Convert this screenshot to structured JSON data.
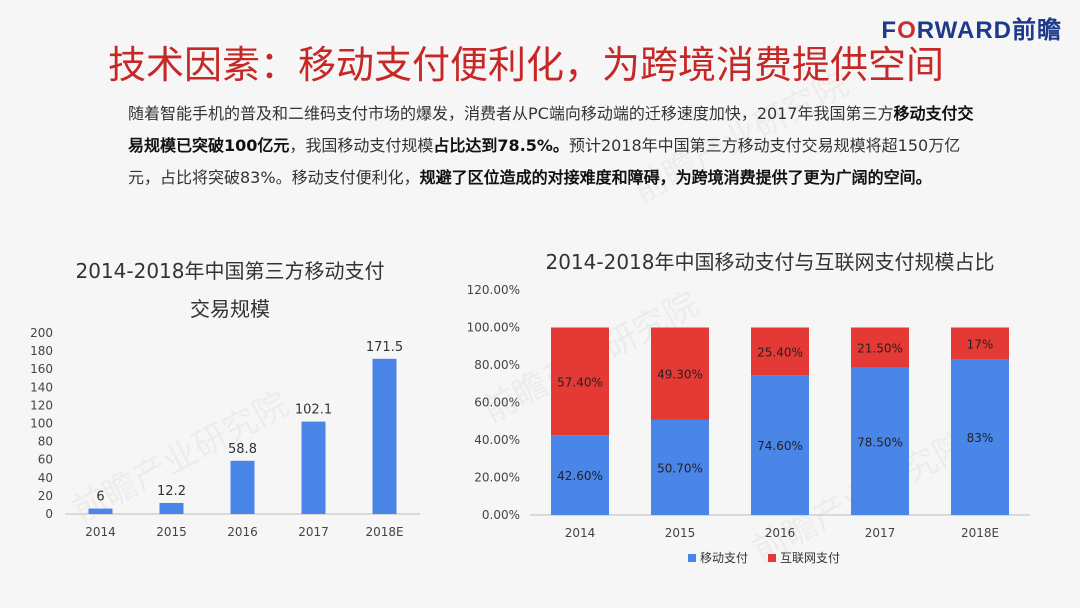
{
  "logo": {
    "pre": "F",
    "o": "O",
    "post": "RWARD前瞻"
  },
  "title": "技术因素：移动支付便利化，为跨境消费提供空间",
  "intro": [
    {
      "t": "随着智能手机的普及和二维码支付市场的爆发，消费者从PC端向移动端的迁移速度加快，2017年我国第三方",
      "b": false
    },
    {
      "t": "移动支付交易规模已突破100亿元",
      "b": true
    },
    {
      "t": "，我国移动支付规模",
      "b": false
    },
    {
      "t": "占比达到78.5%。",
      "b": true
    },
    {
      "t": "预计2018年中国第三方移动支付交易规模将超150万亿元，占比将突破83%。移动支付便利化，",
      "b": false
    },
    {
      "t": "规避了区位造成的对接难度和障碍，为跨境消费提供了更为广阔的空间。",
      "b": true
    }
  ],
  "colors": {
    "blue": "#4a86e8",
    "red": "#e53935",
    "title": "#c62828"
  },
  "chart_data": [
    {
      "type": "bar",
      "title_line1": "2014-2018年中国第三方移动支付",
      "title_line2": "交易规模",
      "categories": [
        "2014",
        "2015",
        "2016",
        "2017",
        "2018E"
      ],
      "values": [
        6,
        12.2,
        58.8,
        102.1,
        171.5
      ],
      "data_labels": [
        "6",
        "12.2",
        "58.8",
        "102.1",
        "171.5"
      ],
      "ylim": [
        0,
        200
      ],
      "yticks": [
        "0",
        "20",
        "40",
        "60",
        "80",
        "100",
        "120",
        "140",
        "160",
        "180",
        "200"
      ],
      "grid": false,
      "color": "#4a86e8"
    },
    {
      "type": "bar",
      "stacked": true,
      "title": "2014-2018年中国移动支付与互联网支付规模占比",
      "categories": [
        "2014",
        "2015",
        "2016",
        "2017",
        "2018E"
      ],
      "series": [
        {
          "name": "移动支付",
          "values": [
            42.6,
            50.7,
            74.6,
            78.5,
            83
          ],
          "labels": [
            "42.60%",
            "50.70%",
            "74.60%",
            "78.50%",
            "83%"
          ],
          "color": "#4a86e8"
        },
        {
          "name": "互联网支付",
          "values": [
            57.4,
            49.3,
            25.4,
            21.5,
            17
          ],
          "labels": [
            "57.40%",
            "49.30%",
            "25.40%",
            "21.50%",
            "17%"
          ],
          "color": "#e53935"
        }
      ],
      "ylim": [
        0,
        120
      ],
      "yticks": [
        "0.00%",
        "20.00%",
        "40.00%",
        "60.00%",
        "80.00%",
        "100.00%",
        "120.00%"
      ],
      "grid": false,
      "legend_position": "bottom"
    }
  ]
}
